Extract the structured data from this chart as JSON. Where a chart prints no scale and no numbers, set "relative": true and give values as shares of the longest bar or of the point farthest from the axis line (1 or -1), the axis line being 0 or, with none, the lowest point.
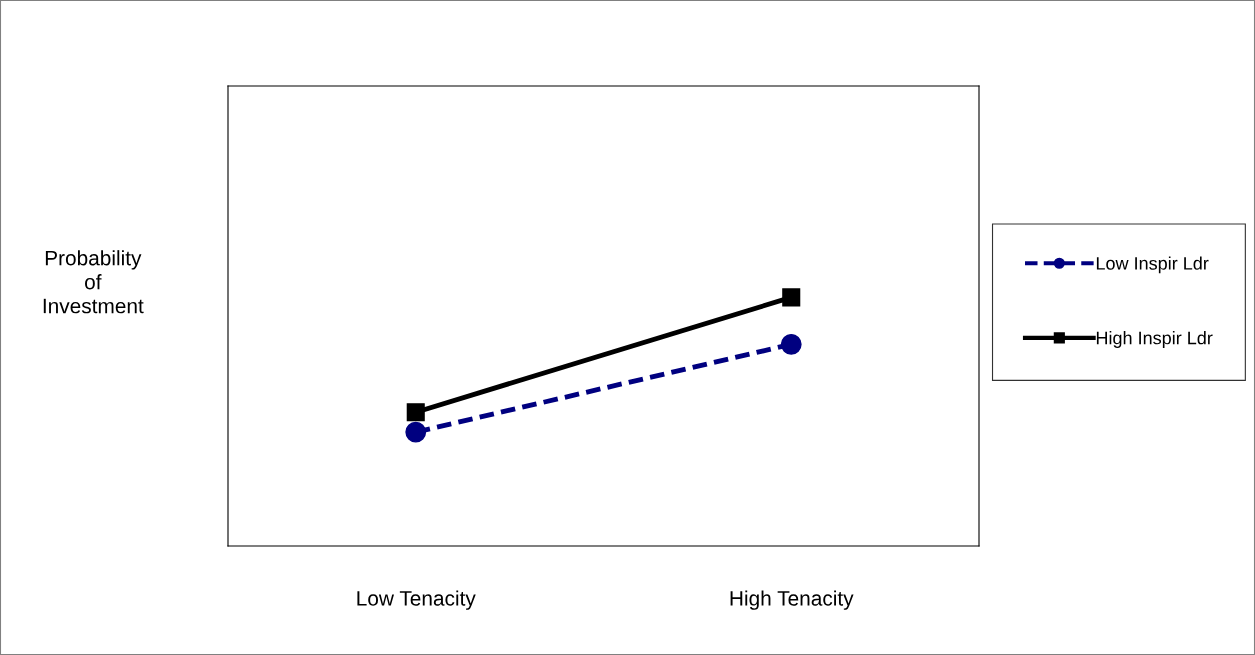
{
  "chart_data": {
    "type": "line",
    "relative": true,
    "ylabel": "Probability\nof\nInvestment",
    "categories": [
      "Low Tenacity",
      "High Tenacity"
    ],
    "series": [
      {
        "name": "Low Inspir Ldr",
        "color": "#000080",
        "values": [
          0.458,
          0.811
        ],
        "marker": "circle",
        "line_style": "dashed"
      },
      {
        "name": "High Inspir Ldr",
        "color": "#000000",
        "values": [
          0.538,
          1
        ],
        "marker": "square",
        "line_style": "solid"
      }
    ],
    "grid": false,
    "legend": "right"
  }
}
